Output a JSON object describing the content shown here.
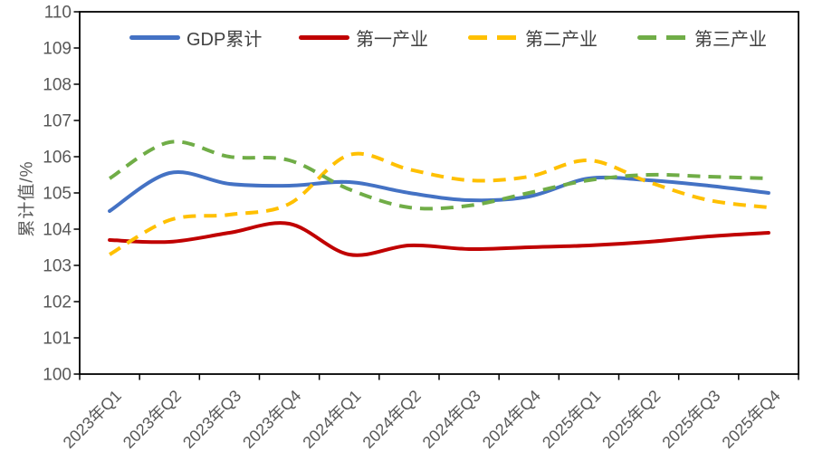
{
  "chart_data": {
    "type": "line",
    "title": "",
    "xlabel": "",
    "ylabel": "累计值/%",
    "ylim": [
      100,
      110
    ],
    "ytick_step": 1,
    "grid": false,
    "legend_position": "top",
    "background": "#ffffff",
    "axis_color": "#000000",
    "tick_label_color": "#595959",
    "legend_text_color": "#404040",
    "line_styles_note": "solid = continuous line, dashed = dash line",
    "categories": [
      "2023年Q1",
      "2023年Q2",
      "2023年Q3",
      "2023年Q4",
      "2024年Q1",
      "2024年Q2",
      "2024年Q3",
      "2024年Q4",
      "2025年Q1",
      "2025年Q2",
      "2025年Q3",
      "2025年Q4"
    ],
    "series": [
      {
        "name": "GDP累计",
        "color": "#4472C4",
        "style": "solid",
        "values": [
          104.5,
          105.55,
          105.25,
          105.2,
          105.3,
          105.0,
          104.8,
          104.9,
          105.4,
          105.35,
          105.2,
          105.0
        ]
      },
      {
        "name": "第一产业",
        "color": "#C00000",
        "style": "solid",
        "values": [
          103.7,
          103.65,
          103.9,
          104.15,
          103.3,
          103.55,
          103.45,
          103.5,
          103.55,
          103.65,
          103.8,
          103.9
        ]
      },
      {
        "name": "第二产业",
        "color": "#FFC000",
        "style": "dashed",
        "values": [
          103.3,
          104.25,
          104.4,
          104.7,
          106.05,
          105.65,
          105.35,
          105.45,
          105.9,
          105.3,
          104.8,
          104.6
        ]
      },
      {
        "name": "第三产业",
        "color": "#70AD47",
        "style": "dashed",
        "values": [
          105.4,
          106.4,
          106.0,
          105.9,
          105.1,
          104.6,
          104.65,
          105.0,
          105.35,
          105.5,
          105.45,
          105.4
        ]
      }
    ]
  }
}
